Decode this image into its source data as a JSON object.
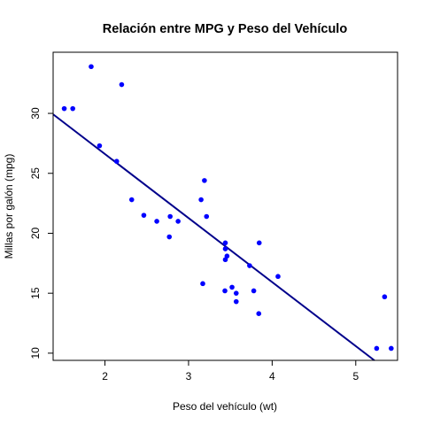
{
  "chart_data": {
    "type": "scatter",
    "title": "Relación entre MPG y Peso del Vehículo",
    "xlabel": "Peso del vehículo (wt)",
    "ylabel": "Millas por galón (mpg)",
    "xlim": [
      1.38,
      5.5
    ],
    "ylim": [
      9.4,
      35.1
    ],
    "xticks": [
      2,
      3,
      4,
      5
    ],
    "yticks": [
      10,
      15,
      20,
      25,
      30
    ],
    "grid": false,
    "point_color": "#0000ff",
    "line_color": "#00008b",
    "points": [
      {
        "x": 2.62,
        "y": 21.0
      },
      {
        "x": 2.875,
        "y": 21.0
      },
      {
        "x": 2.32,
        "y": 22.8
      },
      {
        "x": 3.215,
        "y": 21.4
      },
      {
        "x": 3.44,
        "y": 18.7
      },
      {
        "x": 3.46,
        "y": 18.1
      },
      {
        "x": 3.57,
        "y": 14.3
      },
      {
        "x": 3.19,
        "y": 24.4
      },
      {
        "x": 3.15,
        "y": 22.8
      },
      {
        "x": 3.44,
        "y": 19.2
      },
      {
        "x": 3.44,
        "y": 17.8
      },
      {
        "x": 4.07,
        "y": 16.4
      },
      {
        "x": 3.73,
        "y": 17.3
      },
      {
        "x": 3.78,
        "y": 15.2
      },
      {
        "x": 5.25,
        "y": 10.4
      },
      {
        "x": 5.424,
        "y": 10.4
      },
      {
        "x": 5.345,
        "y": 14.7
      },
      {
        "x": 2.2,
        "y": 32.4
      },
      {
        "x": 1.615,
        "y": 30.4
      },
      {
        "x": 1.835,
        "y": 33.9
      },
      {
        "x": 2.465,
        "y": 21.5
      },
      {
        "x": 3.52,
        "y": 15.5
      },
      {
        "x": 3.435,
        "y": 15.2
      },
      {
        "x": 3.84,
        "y": 13.3
      },
      {
        "x": 3.845,
        "y": 19.2
      },
      {
        "x": 1.935,
        "y": 27.3
      },
      {
        "x": 2.14,
        "y": 26.0
      },
      {
        "x": 1.513,
        "y": 30.4
      },
      {
        "x": 3.17,
        "y": 15.8
      },
      {
        "x": 2.77,
        "y": 19.7
      },
      {
        "x": 3.57,
        "y": 15.0
      },
      {
        "x": 2.78,
        "y": 21.4
      }
    ],
    "regression_line": {
      "intercept": 37.29,
      "slope": -5.34
    }
  }
}
